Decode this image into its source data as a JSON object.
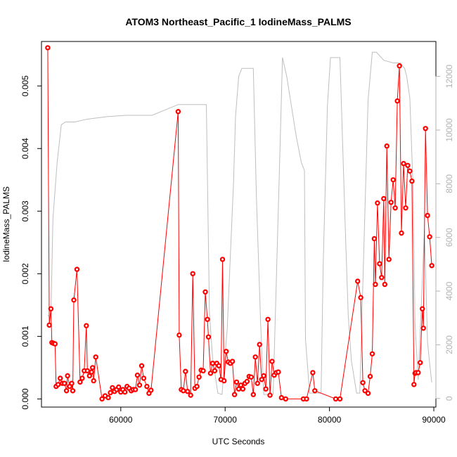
{
  "chart_data": {
    "type": "line",
    "title": "ATOM3 Northeast_Pacific_1 IodineMass_PALMS",
    "xlabel": "UTC Seconds",
    "ylabel": "IodineMass_PALMS",
    "xlim": [
      52400,
      90200
    ],
    "ylim": [
      -0.00013,
      0.00571
    ],
    "y2lim": [
      -320,
      13300
    ],
    "x_ticks": [
      "60000",
      "70000",
      "80000",
      "90000"
    ],
    "x_tick_values": [
      60000,
      70000,
      80000,
      90000
    ],
    "y_ticks": [
      "0.000",
      "0.001",
      "0.002",
      "0.003",
      "0.004",
      "0.005"
    ],
    "y_tick_values": [
      0,
      0.001,
      0.002,
      0.003,
      0.004,
      0.005
    ],
    "y2_ticks": [
      "0",
      "2000",
      "4000",
      "6000",
      "8000",
      "10000",
      "12000"
    ],
    "y2_tick_values": [
      0,
      2000,
      4000,
      6000,
      8000,
      10000,
      12000
    ],
    "grid": false,
    "colors": {
      "series": "#ff0000",
      "altitude": "#bebebe"
    },
    "series": [
      {
        "values": [
          [
            53000,
            0.00561
          ],
          [
            53150,
            0.00118
          ],
          [
            53300,
            0.00144
          ],
          [
            53400,
            0.0009
          ],
          [
            53550,
            0.00089
          ],
          [
            53700,
            0.00088
          ],
          [
            53800,
            0.0002
          ],
          [
            54000,
            0.00023
          ],
          [
            54200,
            0.00033
          ],
          [
            54400,
            0.00025
          ],
          [
            54600,
            0.00025
          ],
          [
            54800,
            0.00013
          ],
          [
            54900,
            0.00037
          ],
          [
            55100,
            0.0002
          ],
          [
            55300,
            0.00025
          ],
          [
            55400,
            0.00013
          ],
          [
            55500,
            0.00158
          ],
          [
            55800,
            0.00207
          ],
          [
            56100,
            0.00027
          ],
          [
            56300,
            0.00033
          ],
          [
            56500,
            0.00045
          ],
          [
            56700,
            0.00117
          ],
          [
            56800,
            0.00045
          ],
          [
            57000,
            0.00037
          ],
          [
            57200,
            0.00043
          ],
          [
            57300,
            0.0005
          ],
          [
            57400,
            0.00029
          ],
          [
            57600,
            0.00067
          ],
          [
            58200,
            0.0
          ],
          [
            58500,
            5e-05
          ],
          [
            58800,
            2e-05
          ],
          [
            59000,
            0.0001
          ],
          [
            59200,
            0.00018
          ],
          [
            59400,
            0.00012
          ],
          [
            59600,
            0.00015
          ],
          [
            59800,
            0.00019
          ],
          [
            60000,
            0.00011
          ],
          [
            60200,
            0.00015
          ],
          [
            60400,
            0.00011
          ],
          [
            60600,
            0.0002
          ],
          [
            60800,
            0.00017
          ],
          [
            61000,
            0.00013
          ],
          [
            61200,
            0.00015
          ],
          [
            61400,
            0.00015
          ],
          [
            61600,
            0.00038
          ],
          [
            61800,
            0.00022
          ],
          [
            62000,
            0.00053
          ],
          [
            62200,
            0.00033
          ],
          [
            62500,
            0.0002
          ],
          [
            62700,
            9e-05
          ],
          [
            62900,
            0.00014
          ],
          [
            65500,
            0.00459
          ],
          [
            65600,
            0.00102
          ],
          [
            65800,
            0.00015
          ],
          [
            66000,
            0.00013
          ],
          [
            66200,
            0.00044
          ],
          [
            66400,
            0.00012
          ],
          [
            66700,
            6e-05
          ],
          [
            66900,
            0.002
          ],
          [
            67100,
            0.00017
          ],
          [
            67300,
            0.0002
          ],
          [
            67500,
            0.00035
          ],
          [
            67700,
            0.00046
          ],
          [
            67900,
            0.00045
          ],
          [
            68100,
            0.00171
          ],
          [
            68300,
            0.00127
          ],
          [
            68400,
            0.00099
          ],
          [
            68600,
            0.00041
          ],
          [
            68800,
            0.00057
          ],
          [
            69000,
            0.00045
          ],
          [
            69200,
            0.00057
          ],
          [
            69400,
            0.00053
          ],
          [
            69600,
            0.00031
          ],
          [
            69750,
            0.00223
          ],
          [
            69900,
            0.00029
          ],
          [
            70100,
            0.00076
          ],
          [
            70300,
            0.00059
          ],
          [
            70500,
            0.00057
          ],
          [
            70700,
            0.0006
          ],
          [
            70900,
            7e-05
          ],
          [
            71100,
            0.00027
          ],
          [
            71300,
            0.00016
          ],
          [
            71500,
            0.00022
          ],
          [
            71700,
            0.00016
          ],
          [
            71900,
            0.00025
          ],
          [
            72100,
            0.00028
          ],
          [
            72300,
            0.00036
          ],
          [
            72500,
            0.00035
          ],
          [
            72700,
            7e-05
          ],
          [
            72900,
            0.00067
          ],
          [
            73100,
            0.00025
          ],
          [
            73300,
            0.00087
          ],
          [
            73500,
            0.00031
          ],
          [
            73700,
            0.00037
          ],
          [
            73900,
            0.00016
          ],
          [
            74100,
            0.00127
          ],
          [
            74300,
            6e-05
          ],
          [
            74500,
            0.0006
          ],
          [
            74700,
            0.00038
          ],
          [
            74900,
            0.00042
          ],
          [
            75100,
            0.00043
          ],
          [
            75400,
            2e-05
          ],
          [
            75800,
            0.0
          ],
          [
            77500,
            0.0
          ],
          [
            77800,
            0.0
          ],
          [
            78400,
            0.00042
          ],
          [
            78600,
            0.00013
          ],
          [
            80600,
            0.0
          ],
          [
            81000,
            0.0
          ],
          [
            82700,
            0.00188
          ],
          [
            83000,
            0.00162
          ],
          [
            83200,
            0.00026
          ],
          [
            83400,
            0.00013
          ],
          [
            83700,
            9e-05
          ],
          [
            83900,
            0.00036
          ],
          [
            84100,
            0.00072
          ],
          [
            84300,
            0.00256
          ],
          [
            84400,
            0.00183
          ],
          [
            84600,
            0.00313
          ],
          [
            84800,
            0.00216
          ],
          [
            85000,
            0.00194
          ],
          [
            85200,
            0.0032
          ],
          [
            85300,
            0.00183
          ],
          [
            85500,
            0.00404
          ],
          [
            85700,
            0.00223
          ],
          [
            85900,
            0.00314
          ],
          [
            86100,
            0.0035
          ],
          [
            86300,
            0.00305
          ],
          [
            86500,
            0.00476
          ],
          [
            86700,
            0.00532
          ],
          [
            86900,
            0.00265
          ],
          [
            87100,
            0.00376
          ],
          [
            87300,
            0.00305
          ],
          [
            87500,
            0.00373
          ],
          [
            87700,
            0.00364
          ],
          [
            87900,
            0.00348
          ],
          [
            88100,
            0.00023
          ],
          [
            88200,
            0.00041
          ],
          [
            88300,
            0.00042
          ],
          [
            88500,
            0.00042
          ],
          [
            88700,
            0.00058
          ],
          [
            88900,
            0.00144
          ],
          [
            89000,
            0.00113
          ],
          [
            89200,
            0.00432
          ],
          [
            89400,
            0.00293
          ],
          [
            89600,
            0.00259
          ],
          [
            89800,
            0.00213
          ]
        ]
      }
    ],
    "secondary": [
      [
        53000,
        3100
      ],
      [
        53300,
        3000
      ],
      [
        53500,
        6700
      ],
      [
        53900,
        8800
      ],
      [
        54300,
        10200
      ],
      [
        54700,
        10300
      ],
      [
        55600,
        10300
      ],
      [
        56700,
        10400
      ],
      [
        57700,
        10450
      ],
      [
        58700,
        10500
      ],
      [
        60500,
        10550
      ],
      [
        63000,
        10550
      ],
      [
        65500,
        10950
      ],
      [
        68000,
        10950
      ],
      [
        68200,
        10950
      ],
      [
        68500,
        3200
      ],
      [
        68800,
        1500
      ],
      [
        69300,
        200
      ],
      [
        69700,
        150
      ],
      [
        70200,
        2600
      ],
      [
        70500,
        5300
      ],
      [
        70800,
        8000
      ],
      [
        71000,
        10500
      ],
      [
        71300,
        12000
      ],
      [
        71600,
        12300
      ],
      [
        72700,
        12300
      ],
      [
        73000,
        7500
      ],
      [
        73400,
        2800
      ],
      [
        73700,
        150
      ],
      [
        74600,
        150
      ],
      [
        75200,
        8500
      ],
      [
        75500,
        12700
      ],
      [
        75900,
        12000
      ],
      [
        76800,
        9800
      ],
      [
        77300,
        8800
      ],
      [
        77600,
        8500
      ],
      [
        77700,
        2200
      ],
      [
        78100,
        200
      ],
      [
        79200,
        200
      ],
      [
        79400,
        5000
      ],
      [
        79800,
        10900
      ],
      [
        80100,
        12700
      ],
      [
        80600,
        12700
      ],
      [
        81000,
        12700
      ],
      [
        81500,
        6500
      ],
      [
        81800,
        3100
      ],
      [
        82100,
        1400
      ],
      [
        82600,
        200
      ],
      [
        82900,
        200
      ],
      [
        83700,
        11100
      ],
      [
        84100,
        12900
      ],
      [
        84500,
        12900
      ],
      [
        85200,
        12600
      ],
      [
        86100,
        12500
      ],
      [
        86800,
        12500
      ],
      [
        87200,
        12300
      ],
      [
        87400,
        12000
      ],
      [
        87700,
        11200
      ],
      [
        88000,
        8000
      ],
      [
        88200,
        2800
      ],
      [
        88500,
        700
      ],
      [
        89100,
        6300
      ],
      [
        89400,
        2100
      ],
      [
        89600,
        1300
      ],
      [
        89800,
        600
      ]
    ]
  }
}
